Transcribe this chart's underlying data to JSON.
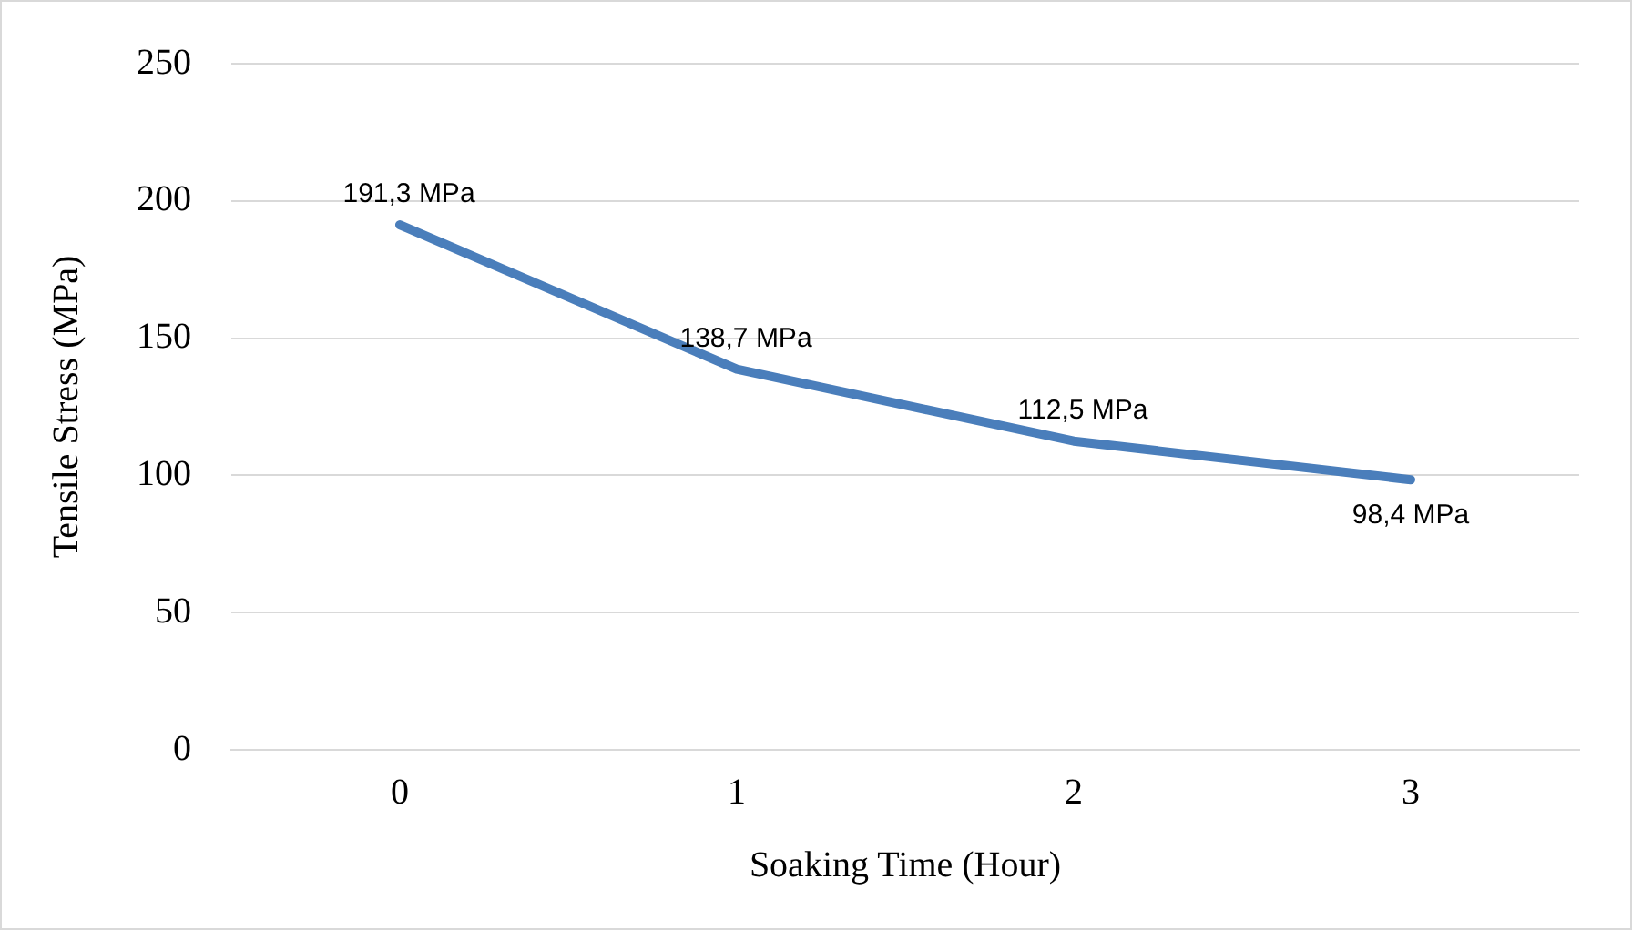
{
  "chart_data": {
    "type": "line",
    "xlabel": "Soaking Time (Hour)",
    "ylabel": "Tensile Stress (MPa)",
    "categories": [
      "0",
      "1",
      "2",
      "3"
    ],
    "series": [
      {
        "color": "#4a7ebb",
        "values": [
          191.3,
          138.7,
          112.5,
          98.4
        ],
        "value_labels": [
          "191,3 MPa",
          "138,7 MPa",
          "112,5 MPa",
          "98,4 MPa"
        ]
      }
    ],
    "ylim": [
      0,
      250
    ],
    "yticks": [
      0,
      50,
      100,
      150,
      200,
      250
    ],
    "grid": "y",
    "legend": false,
    "marker": "none",
    "line_style": "solid"
  }
}
